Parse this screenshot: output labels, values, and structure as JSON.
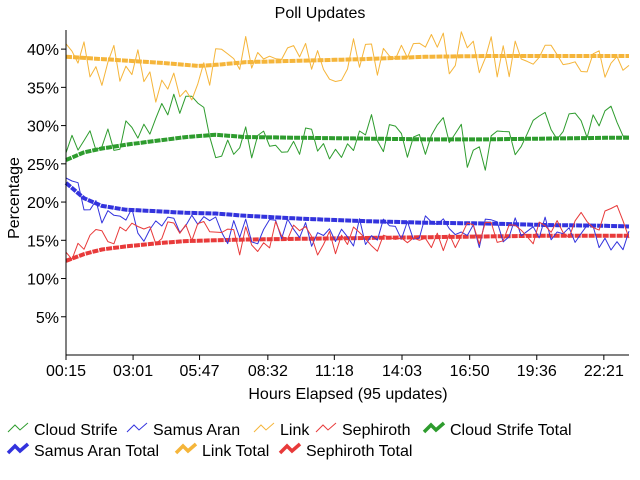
{
  "chart_data": {
    "type": "line",
    "title": "Poll Updates",
    "xlabel": "Hours Elapsed (95 updates)",
    "ylabel": "Percentage",
    "ylim": [
      0,
      42.5
    ],
    "xlim": [
      0,
      94
    ],
    "grid": false,
    "legend_placement": "bottom",
    "y_ticks": [
      {
        "v": 5,
        "label": "5%"
      },
      {
        "v": 10,
        "label": "10%"
      },
      {
        "v": 15,
        "label": "15%"
      },
      {
        "v": 20,
        "label": "20%"
      },
      {
        "v": 25,
        "label": "25%"
      },
      {
        "v": 30,
        "label": "30%"
      },
      {
        "v": 35,
        "label": "35%"
      },
      {
        "v": 40,
        "label": "40%"
      }
    ],
    "x_ticks": [
      {
        "v": 0,
        "label": "00:15"
      },
      {
        "v": 11.2,
        "label": "03:01"
      },
      {
        "v": 22.3,
        "label": "05:47"
      },
      {
        "v": 33.7,
        "label": "08:32"
      },
      {
        "v": 44.8,
        "label": "11:18"
      },
      {
        "v": 56.1,
        "label": "14:03"
      },
      {
        "v": 67.4,
        "label": "16:50"
      },
      {
        "v": 78.6,
        "label": "19:36"
      },
      {
        "v": 89.8,
        "label": "22:21"
      }
    ],
    "series": [
      {
        "name": "Cloud Strife",
        "color": "#2e9c2e",
        "kind": "update",
        "anchors": [
          [
            0,
            25.8
          ],
          [
            4,
            27.5
          ],
          [
            8,
            28.2
          ],
          [
            10,
            30.5
          ],
          [
            12,
            28.5
          ],
          [
            16,
            31.0
          ],
          [
            19,
            32.0
          ],
          [
            21,
            34.5
          ],
          [
            23,
            30.0
          ],
          [
            26,
            27.0
          ],
          [
            30,
            27.5
          ],
          [
            34,
            28.0
          ],
          [
            40,
            28.5
          ],
          [
            46,
            28.0
          ],
          [
            50,
            29.0
          ],
          [
            56,
            28.5
          ],
          [
            60,
            28.0
          ],
          [
            64,
            30.0
          ],
          [
            67,
            26.5
          ],
          [
            70,
            24.2
          ],
          [
            72,
            28.5
          ],
          [
            78,
            29.0
          ],
          [
            84,
            30.0
          ],
          [
            88,
            29.5
          ],
          [
            92,
            30.5
          ],
          [
            94,
            31.0
          ]
        ],
        "amp": 2.6
      },
      {
        "name": "Samus Aran",
        "color": "#3333dd",
        "kind": "update",
        "anchors": [
          [
            0,
            22.5
          ],
          [
            4,
            19.0
          ],
          [
            10,
            17.5
          ],
          [
            16,
            16.0
          ],
          [
            22,
            16.5
          ],
          [
            30,
            16.0
          ],
          [
            40,
            16.2
          ],
          [
            50,
            16.0
          ],
          [
            60,
            16.5
          ],
          [
            70,
            16.0
          ],
          [
            80,
            16.5
          ],
          [
            88,
            16.0
          ],
          [
            92,
            14.5
          ],
          [
            94,
            15.0
          ]
        ],
        "amp": 2.0
      },
      {
        "name": "Link",
        "color": "#f5b53a",
        "kind": "update",
        "anchors": [
          [
            0,
            39.5
          ],
          [
            4,
            38.5
          ],
          [
            8,
            38.0
          ],
          [
            12,
            37.0
          ],
          [
            16,
            35.5
          ],
          [
            19,
            34.0
          ],
          [
            21,
            33.0
          ],
          [
            23,
            36.0
          ],
          [
            26,
            39.5
          ],
          [
            30,
            39.0
          ],
          [
            36,
            39.5
          ],
          [
            44,
            38.0
          ],
          [
            50,
            39.0
          ],
          [
            56,
            38.5
          ],
          [
            62,
            39.5
          ],
          [
            70,
            39.5
          ],
          [
            76,
            39.0
          ],
          [
            82,
            38.5
          ],
          [
            88,
            39.0
          ],
          [
            92,
            38.0
          ],
          [
            94,
            37.5
          ]
        ],
        "amp": 3.0
      },
      {
        "name": "Sephiroth",
        "color": "#e83a3a",
        "kind": "update",
        "anchors": [
          [
            0,
            12.5
          ],
          [
            4,
            14.5
          ],
          [
            10,
            16.0
          ],
          [
            16,
            15.5
          ],
          [
            22,
            16.5
          ],
          [
            28,
            14.5
          ],
          [
            34,
            16.0
          ],
          [
            42,
            15.0
          ],
          [
            50,
            15.5
          ],
          [
            60,
            15.5
          ],
          [
            70,
            16.0
          ],
          [
            80,
            16.0
          ],
          [
            88,
            17.0
          ],
          [
            92,
            18.5
          ],
          [
            94,
            16.0
          ]
        ],
        "amp": 2.0
      },
      {
        "name": "Cloud Strife Total",
        "color": "#2e9c2e",
        "kind": "total",
        "anchors": [
          [
            0,
            25.5
          ],
          [
            3,
            26.5
          ],
          [
            6,
            27.0
          ],
          [
            10,
            27.5
          ],
          [
            15,
            28.0
          ],
          [
            20,
            28.5
          ],
          [
            25,
            28.8
          ],
          [
            30,
            28.5
          ],
          [
            40,
            28.4
          ],
          [
            50,
            28.3
          ],
          [
            60,
            28.2
          ],
          [
            70,
            28.2
          ],
          [
            80,
            28.3
          ],
          [
            90,
            28.4
          ],
          [
            94,
            28.4
          ]
        ],
        "amp": 0
      },
      {
        "name": "Samus Aran Total",
        "color": "#3333dd",
        "kind": "total",
        "anchors": [
          [
            0,
            22.5
          ],
          [
            3,
            20.5
          ],
          [
            6,
            19.5
          ],
          [
            10,
            19.0
          ],
          [
            15,
            18.8
          ],
          [
            20,
            18.6
          ],
          [
            25,
            18.5
          ],
          [
            30,
            18.2
          ],
          [
            40,
            17.8
          ],
          [
            50,
            17.5
          ],
          [
            60,
            17.3
          ],
          [
            70,
            17.2
          ],
          [
            80,
            17.0
          ],
          [
            90,
            16.9
          ],
          [
            94,
            16.8
          ]
        ],
        "amp": 0
      },
      {
        "name": "Link Total",
        "color": "#f5b53a",
        "kind": "total",
        "anchors": [
          [
            0,
            39.0
          ],
          [
            4,
            38.8
          ],
          [
            10,
            38.5
          ],
          [
            16,
            38.2
          ],
          [
            22,
            37.8
          ],
          [
            26,
            38.0
          ],
          [
            30,
            38.3
          ],
          [
            40,
            38.5
          ],
          [
            50,
            38.7
          ],
          [
            60,
            39.0
          ],
          [
            70,
            39.1
          ],
          [
            80,
            39.1
          ],
          [
            90,
            39.1
          ],
          [
            94,
            39.1
          ]
        ],
        "amp": 0
      },
      {
        "name": "Sephiroth Total",
        "color": "#e83a3a",
        "kind": "total",
        "anchors": [
          [
            0,
            12.3
          ],
          [
            3,
            13.2
          ],
          [
            6,
            13.8
          ],
          [
            10,
            14.2
          ],
          [
            15,
            14.6
          ],
          [
            20,
            14.9
          ],
          [
            25,
            15.0
          ],
          [
            30,
            15.1
          ],
          [
            40,
            15.2
          ],
          [
            50,
            15.3
          ],
          [
            60,
            15.4
          ],
          [
            70,
            15.5
          ],
          [
            80,
            15.6
          ],
          [
            90,
            15.6
          ],
          [
            94,
            15.6
          ]
        ],
        "amp": 0
      }
    ],
    "legend_rows": [
      [
        "Cloud Strife",
        "Samus Aran",
        "Link",
        "Sephiroth",
        "Cloud Strife Total"
      ],
      [
        "Samus Aran Total",
        "Link Total",
        "Sephiroth Total"
      ]
    ]
  }
}
